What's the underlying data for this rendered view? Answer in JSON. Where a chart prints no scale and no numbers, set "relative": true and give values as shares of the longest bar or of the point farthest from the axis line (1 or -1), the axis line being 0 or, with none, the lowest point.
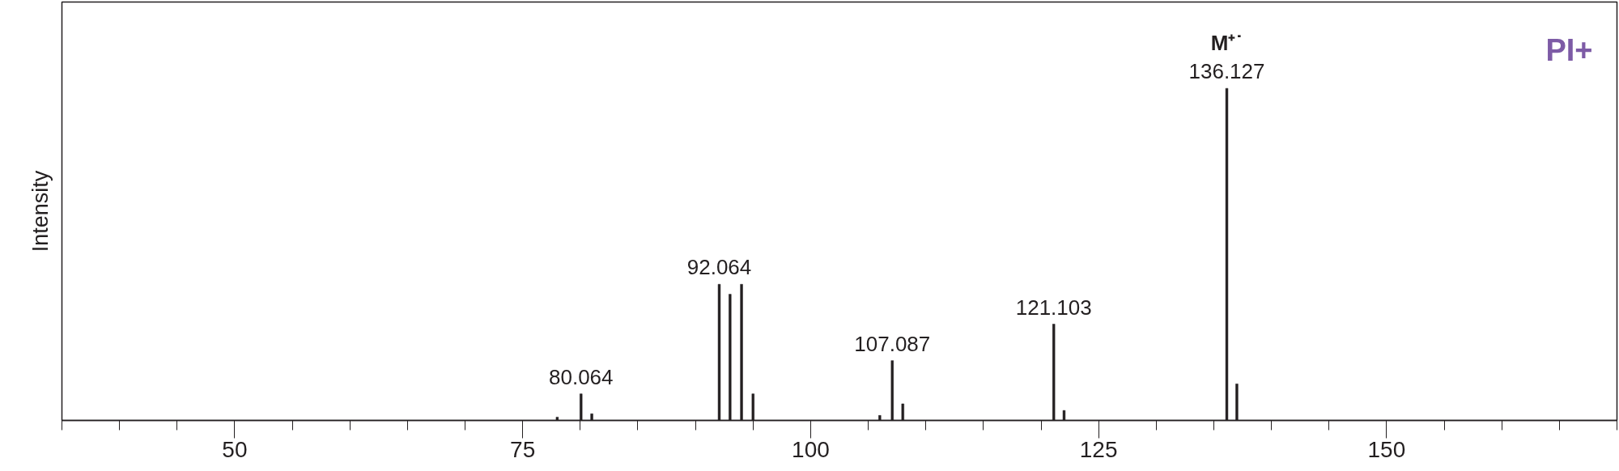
{
  "chart_data": {
    "type": "bar",
    "relative": true,
    "color": "#231f20",
    "ylabel": "Intensity",
    "x": [
      78,
      80.064,
      81,
      92.064,
      93,
      94,
      95,
      106,
      107.087,
      108,
      121.103,
      122,
      136.127,
      137
    ],
    "values": [
      0.01,
      0.08,
      0.02,
      0.41,
      0.38,
      0.41,
      0.08,
      0.015,
      0.18,
      0.05,
      0.29,
      0.03,
      1,
      0.11
    ],
    "xlim": [
      35,
      170
    ],
    "xticks": [
      {
        "value": 35,
        "label": null
      },
      {
        "value": 40,
        "label": null
      },
      {
        "value": 45,
        "label": null
      },
      50,
      {
        "value": 55,
        "label": null
      },
      {
        "value": 60,
        "label": null
      },
      {
        "value": 65,
        "label": null
      },
      {
        "value": 70,
        "label": null
      },
      75,
      {
        "value": 80,
        "label": null
      },
      {
        "value": 85,
        "label": null
      },
      {
        "value": 90,
        "label": null
      },
      {
        "value": 95,
        "label": null
      },
      100,
      {
        "value": 105,
        "label": null
      },
      {
        "value": 110,
        "label": null
      },
      {
        "value": 115,
        "label": null
      },
      {
        "value": 120,
        "label": null
      },
      125,
      {
        "value": 130,
        "label": null
      },
      {
        "value": 135,
        "label": null
      },
      {
        "value": 140,
        "label": null
      },
      {
        "value": 145,
        "label": null
      },
      150,
      {
        "value": 155,
        "label": null
      },
      {
        "value": 160,
        "label": null
      },
      {
        "value": 165,
        "label": null
      },
      {
        "value": 170,
        "label": null
      }
    ],
    "annotations": [
      "PI+",
      {
        "text": "80.064",
        "x": 80.064,
        "y": 0.08
      },
      {
        "text": "92.064",
        "x": 92.064,
        "y": 0.41
      },
      {
        "text": "107.087",
        "x": 107.087,
        "y": 0.18
      },
      {
        "text": "121.103",
        "x": 121.103,
        "y": 0.29
      },
      {
        "text": "M⁺˙",
        "x": 136.127,
        "y": 1
      },
      {
        "text": "136.127",
        "x": 136.127,
        "y": 1
      }
    ]
  }
}
